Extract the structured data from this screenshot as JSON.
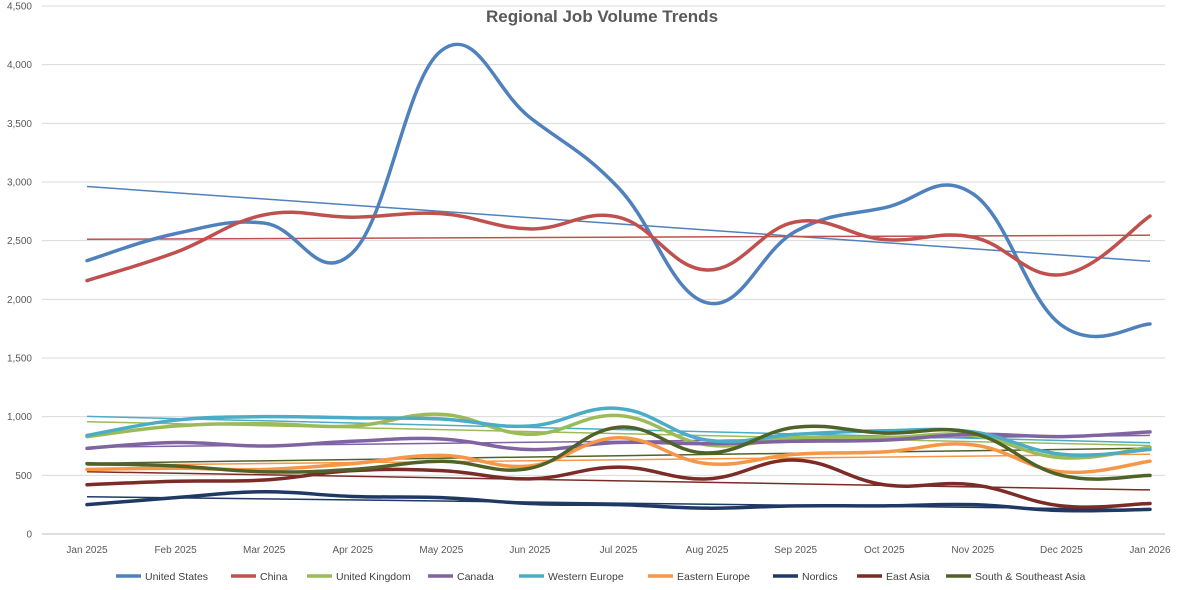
{
  "chart_data": {
    "type": "line",
    "title": "Regional Job Volume Trends",
    "xlabel": "",
    "ylabel": "",
    "categories": [
      "Jan 2025",
      "Feb 2025",
      "Mar 2025",
      "Apr 2025",
      "May 2025",
      "Jun 2025",
      "Jul 2025",
      "Aug 2025",
      "Sep 2025",
      "Oct 2025",
      "Nov 2025",
      "Dec 2025",
      "Jan 2026"
    ],
    "ylim": [
      0,
      4500
    ],
    "yticks": [
      0,
      500,
      1000,
      1500,
      2000,
      2500,
      3000,
      3500,
      4000,
      4500
    ],
    "ytick_labels": [
      "0",
      "500",
      "1,000",
      "1,500",
      "2,000",
      "2,500",
      "3,000",
      "3,500",
      "4,000",
      "4,500"
    ],
    "grid": true,
    "legend_position": "bottom",
    "smooth": true,
    "trendlines": true,
    "series": [
      {
        "name": "United States",
        "color": "#4F81BD",
        "values": [
          2330,
          2560,
          2650,
          2400,
          4120,
          3550,
          2950,
          1970,
          2580,
          2780,
          2900,
          1780,
          1790
        ]
      },
      {
        "name": "China",
        "color": "#C0504D",
        "values": [
          2160,
          2400,
          2720,
          2700,
          2730,
          2600,
          2700,
          2250,
          2660,
          2510,
          2530,
          2210,
          2710
        ]
      },
      {
        "name": "United Kingdom",
        "color": "#9BBB59",
        "values": [
          830,
          920,
          940,
          920,
          1020,
          850,
          1010,
          760,
          820,
          820,
          840,
          650,
          740
        ]
      },
      {
        "name": "Canada",
        "color": "#8064A2",
        "values": [
          730,
          780,
          750,
          790,
          810,
          720,
          780,
          770,
          790,
          800,
          850,
          830,
          870
        ]
      },
      {
        "name": "Western Europe",
        "color": "#4BACC6",
        "values": [
          840,
          970,
          1000,
          990,
          980,
          920,
          1070,
          800,
          850,
          880,
          870,
          680,
          720
        ]
      },
      {
        "name": "Eastern Europe",
        "color": "#F79646",
        "values": [
          550,
          560,
          550,
          600,
          670,
          580,
          820,
          600,
          680,
          700,
          760,
          530,
          620
        ]
      },
      {
        "name": "Nordics",
        "color": "#1F3864",
        "values": [
          250,
          310,
          360,
          320,
          310,
          260,
          250,
          220,
          240,
          240,
          250,
          200,
          210
        ]
      },
      {
        "name": "East Asia",
        "color": "#7B2C27",
        "values": [
          420,
          450,
          460,
          540,
          540,
          470,
          570,
          470,
          630,
          420,
          420,
          240,
          260
        ]
      },
      {
        "name": "South & Southeast Asia",
        "color": "#4F6228",
        "values": [
          600,
          580,
          530,
          550,
          620,
          560,
          910,
          690,
          910,
          860,
          860,
          500,
          500
        ]
      }
    ]
  }
}
